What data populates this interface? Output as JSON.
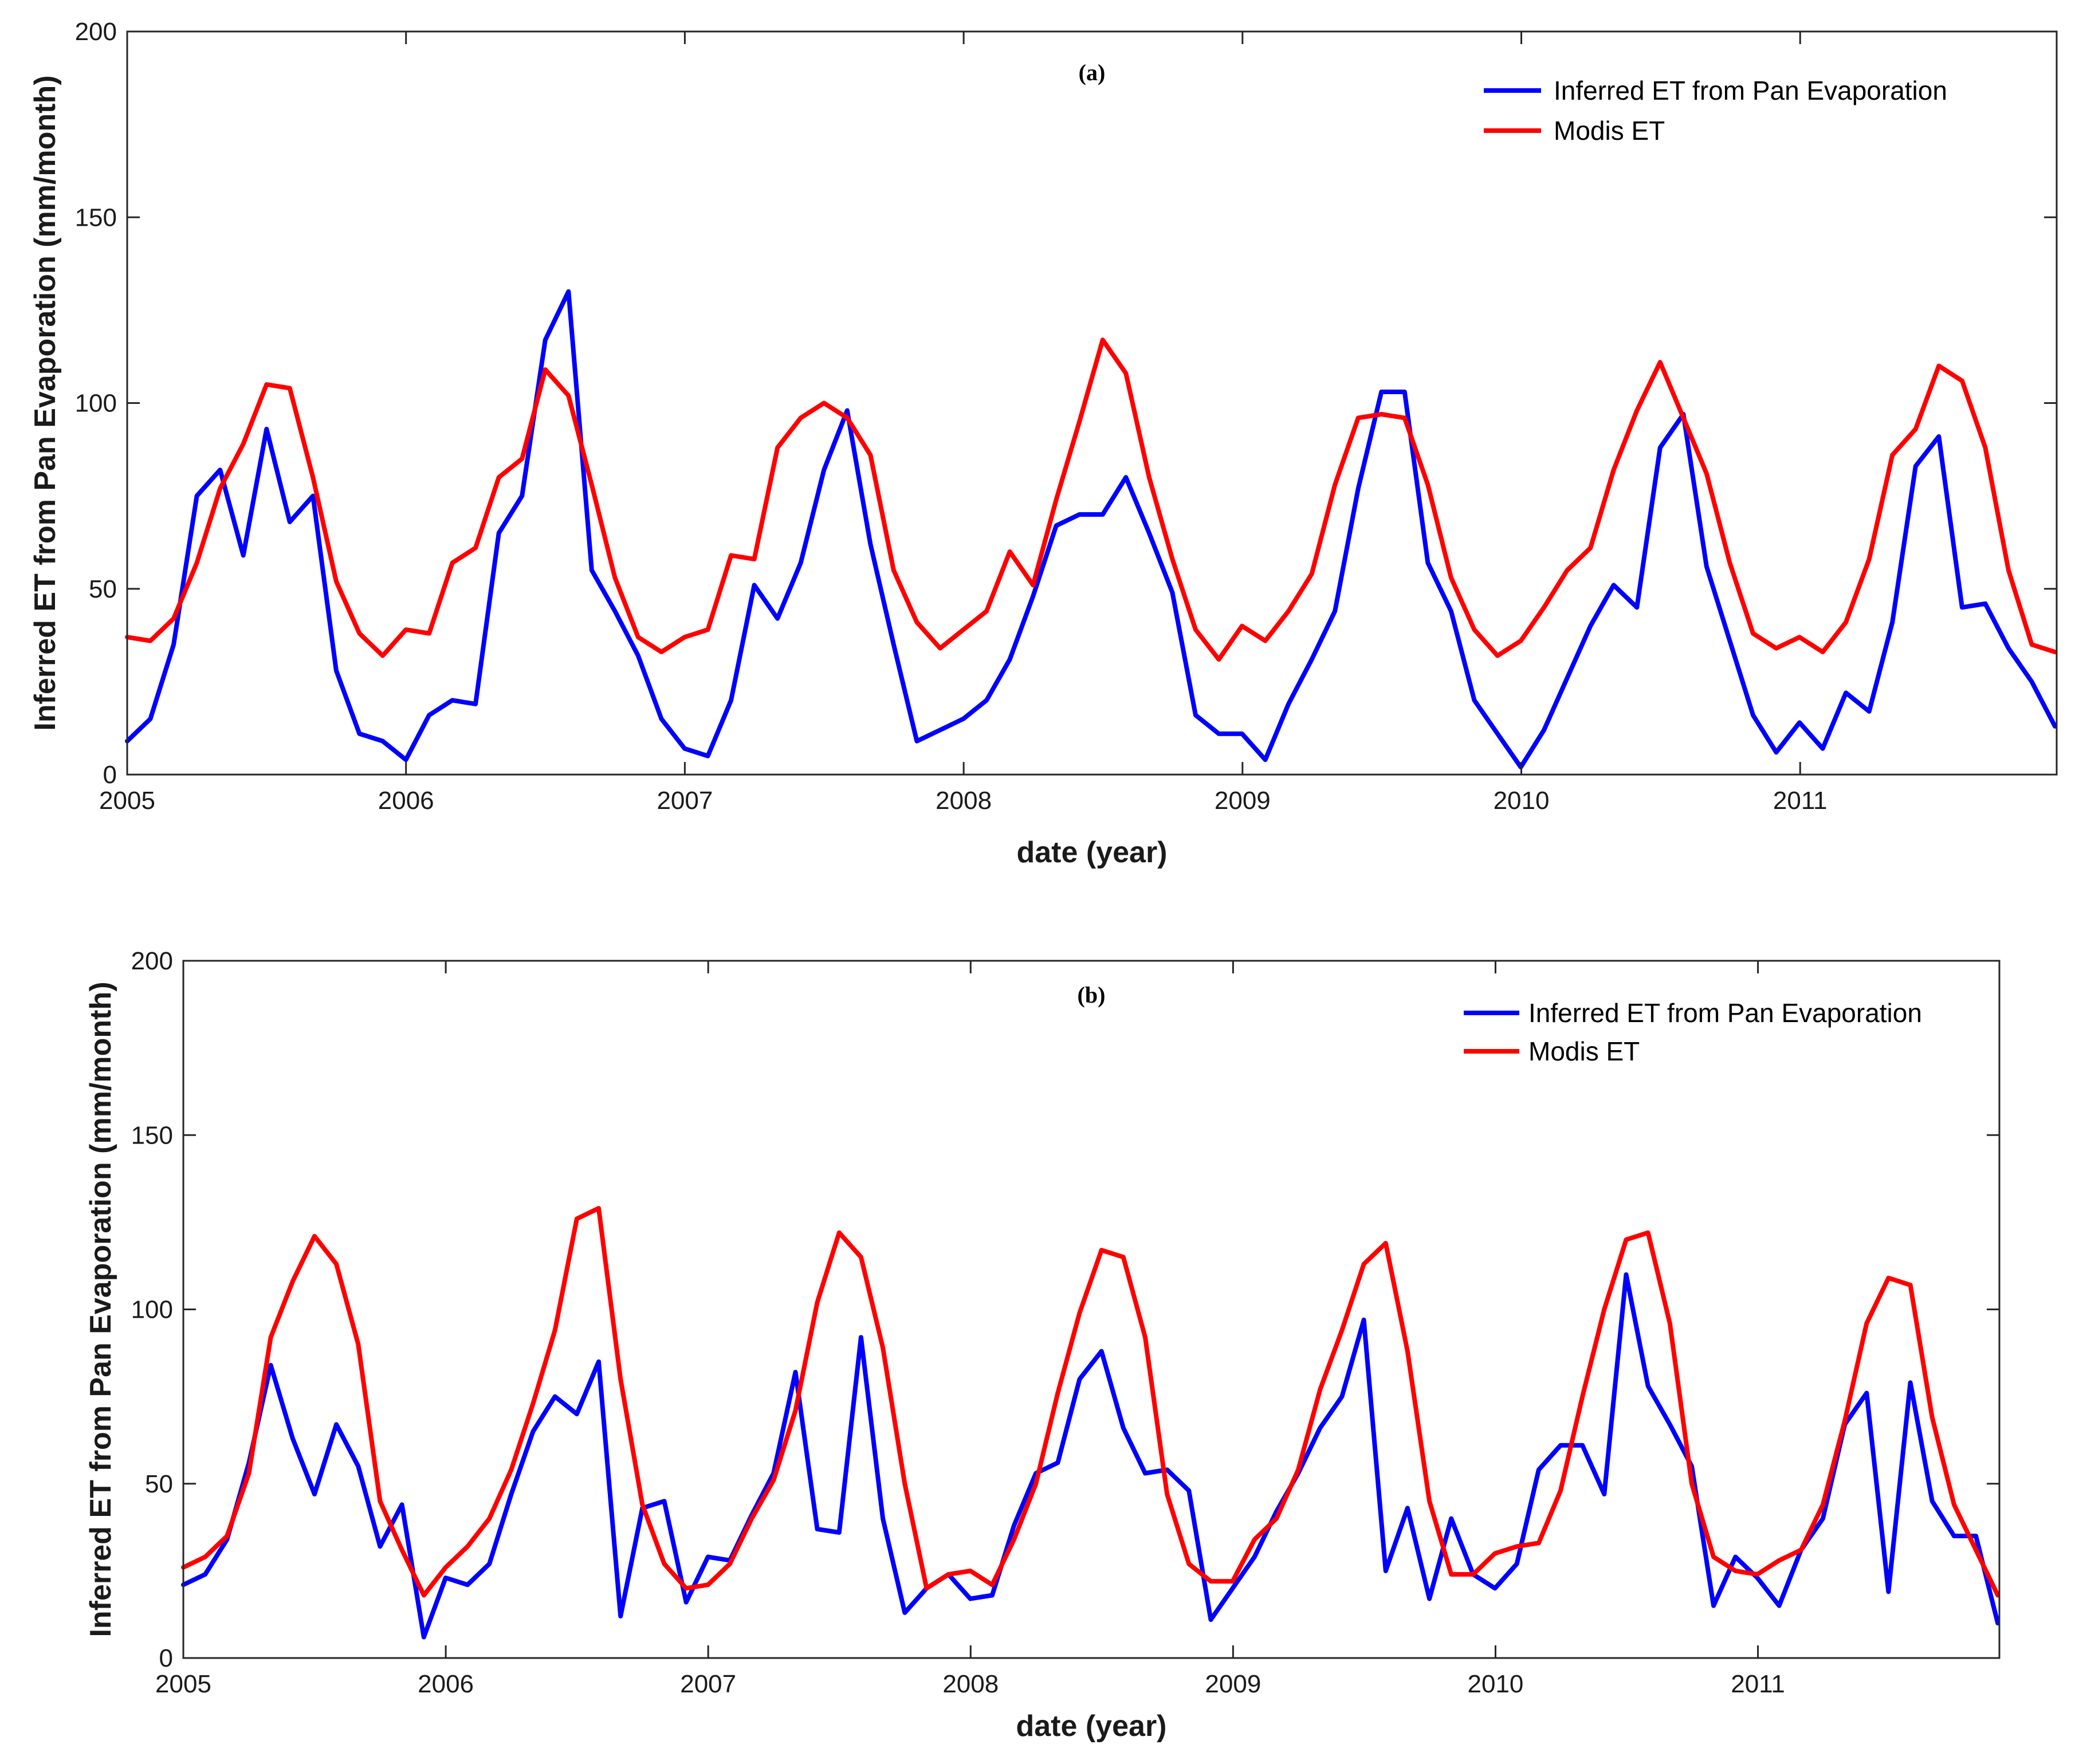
{
  "chart_data": [
    {
      "type": "line",
      "title": "(a)",
      "xlabel": "date (year)",
      "ylabel": "Inferred ET from Pan Evaporation (mm/month)",
      "xlim": [
        2005,
        2011.92
      ],
      "ylim": [
        0,
        200
      ],
      "xticks": [
        "2005",
        "2006",
        "2007",
        "2008",
        "2009",
        "2010",
        "2011"
      ],
      "yticks": [
        "0",
        "50",
        "100",
        "150",
        "200"
      ],
      "x_start_year": 2005,
      "x_step": 0.0833,
      "legend_position": "top-right",
      "grid": false,
      "series": [
        {
          "name": "Inferred ET from Pan Evaporation",
          "color": "#0000ff",
          "values": [
            9,
            15,
            35,
            75,
            82,
            59,
            93,
            68,
            75,
            28,
            11,
            9,
            4,
            16,
            20,
            19,
            65,
            75,
            117,
            130,
            55,
            44,
            32,
            15,
            7,
            5,
            20,
            51,
            42,
            57,
            82,
            98,
            62,
            35,
            9,
            12,
            15,
            20,
            31,
            48,
            67,
            70,
            70,
            80,
            65,
            49,
            16,
            11,
            11,
            4,
            19,
            31,
            44,
            77,
            103,
            103,
            57,
            44,
            20,
            11,
            2,
            12,
            26,
            40,
            51,
            45,
            88,
            97,
            56,
            36,
            16,
            6,
            14,
            7,
            22,
            17,
            41,
            83,
            91,
            45,
            46,
            34,
            25,
            13
          ]
        },
        {
          "name": "Modis ET",
          "color": "#ff0000",
          "values": [
            37,
            36,
            42,
            57,
            77,
            89,
            105,
            104,
            80,
            52,
            38,
            32,
            39,
            38,
            57,
            61,
            80,
            85,
            109,
            102,
            78,
            53,
            37,
            33,
            37,
            39,
            59,
            58,
            88,
            96,
            100,
            96,
            86,
            55,
            41,
            34,
            39,
            44,
            60,
            51,
            74,
            95,
            117,
            108,
            80,
            58,
            39,
            31,
            40,
            36,
            44,
            54,
            78,
            96,
            97,
            96,
            78,
            53,
            39,
            32,
            36,
            45,
            55,
            61,
            82,
            98,
            111,
            96,
            81,
            57,
            38,
            34,
            37,
            33,
            41,
            58,
            86,
            93,
            110,
            106,
            88,
            55,
            35,
            33
          ]
        }
      ]
    },
    {
      "type": "line",
      "title": "(b)",
      "xlabel": "date (year)",
      "ylabel": "Inferred ET from Pan Evaporation (mm/month)",
      "xlim": [
        2005,
        2011.92
      ],
      "ylim": [
        0,
        200
      ],
      "xticks": [
        "2005",
        "2006",
        "2007",
        "2008",
        "2009",
        "2010",
        "2011"
      ],
      "yticks": [
        "0",
        "50",
        "100",
        "150",
        "200"
      ],
      "x_start_year": 2005,
      "x_step": 0.0833,
      "legend_position": "top-right",
      "grid": false,
      "series": [
        {
          "name": "Inferred ET from Pan Evaporation",
          "color": "#0000ff",
          "values": [
            21,
            24,
            34,
            56,
            84,
            63,
            47,
            67,
            55,
            32,
            44,
            6,
            23,
            21,
            27,
            47,
            65,
            75,
            70,
            85,
            12,
            43,
            45,
            16,
            29,
            28,
            41,
            53,
            82,
            37,
            36,
            92,
            40,
            13,
            20,
            24,
            17,
            18,
            38,
            53,
            56,
            80,
            88,
            66,
            53,
            54,
            48,
            11,
            20,
            29,
            42,
            53,
            66,
            75,
            97,
            25,
            43,
            17,
            40,
            24,
            20,
            27,
            54,
            61,
            61,
            47,
            110,
            78,
            67,
            55,
            15,
            29,
            23,
            15,
            31,
            40,
            67,
            76,
            19,
            79,
            45,
            35,
            35,
            10
          ]
        },
        {
          "name": "Modis ET",
          "color": "#ff0000",
          "values": [
            26,
            29,
            35,
            53,
            92,
            108,
            121,
            113,
            90,
            45,
            31,
            18,
            26,
            32,
            40,
            54,
            73,
            94,
            126,
            129,
            80,
            44,
            27,
            20,
            21,
            27,
            40,
            51,
            71,
            102,
            122,
            115,
            89,
            50,
            20,
            24,
            25,
            21,
            34,
            50,
            76,
            99,
            117,
            115,
            92,
            47,
            27,
            22,
            22,
            34,
            40,
            54,
            77,
            94,
            113,
            119,
            88,
            45,
            24,
            24,
            30,
            32,
            33,
            48,
            75,
            100,
            120,
            122,
            96,
            50,
            29,
            25,
            24,
            28,
            31,
            44,
            68,
            96,
            109,
            107,
            69,
            44,
            31,
            18
          ]
        }
      ]
    }
  ]
}
